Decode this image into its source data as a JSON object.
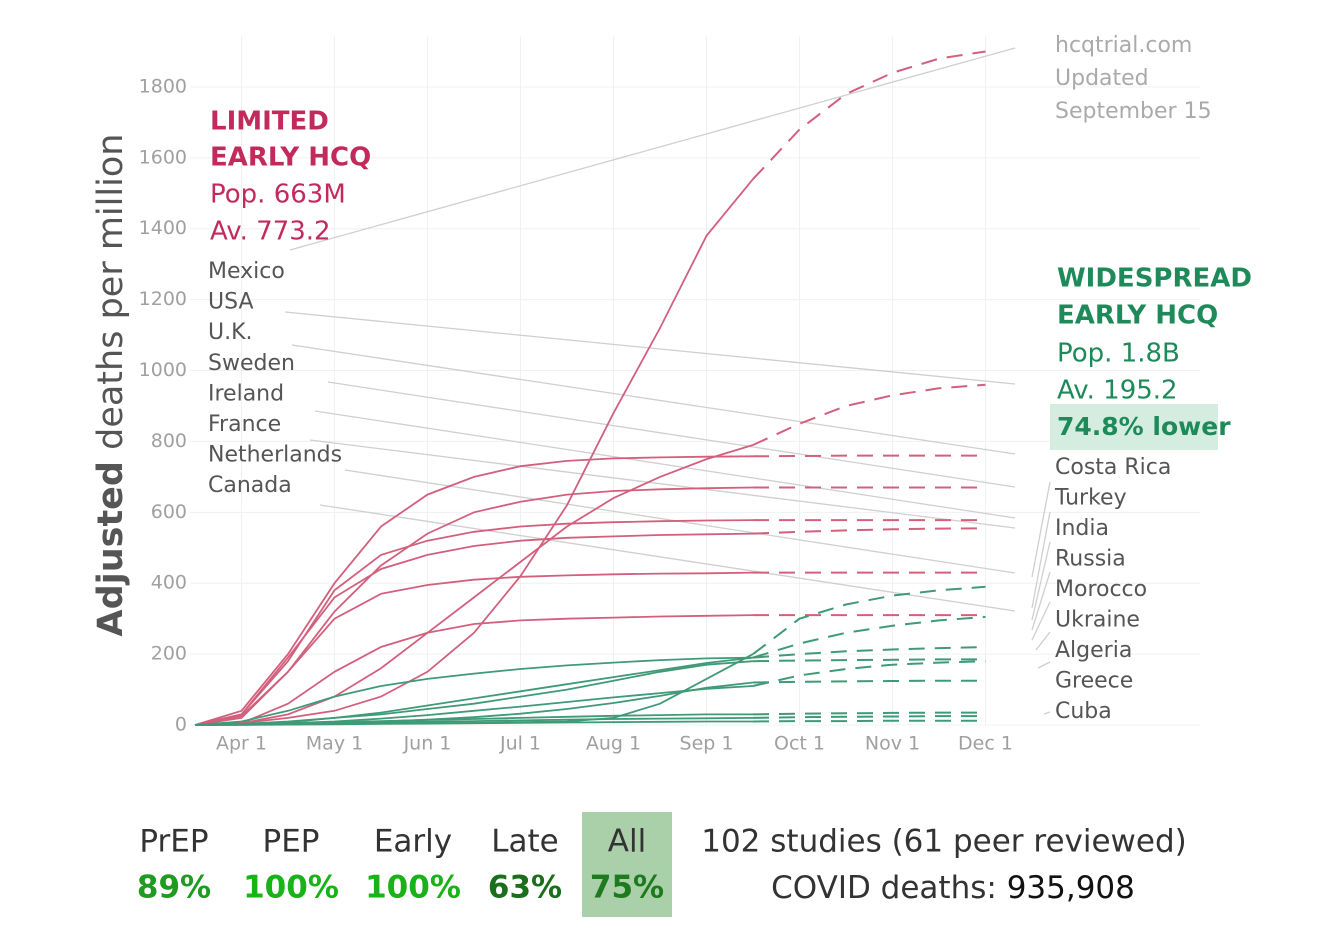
{
  "chart_data": {
    "type": "line",
    "ylabel_bold": "Adjusted",
    "ylabel": "deaths per million",
    "categories": [
      null,
      "Apr 1",
      null,
      "May 1",
      null,
      "Jun 1",
      null,
      "Jul 1",
      null,
      "Aug 1",
      null,
      "Sep 1",
      null,
      "Oct 1",
      null,
      "Nov 1",
      null,
      "Dec 1"
    ],
    "ylim": [
      0,
      1900
    ],
    "yticks": [
      0,
      200,
      400,
      600,
      800,
      1000,
      1200,
      1400,
      1600,
      1800
    ],
    "grid": true,
    "series": [
      {
        "color": "#d2607d",
        "values": [
          0,
          5,
          20,
          40,
          80,
          150,
          260,
          420,
          620,
          880,
          1120,
          1380,
          1540,
          null,
          null,
          null,
          null,
          null
        ],
        "projected": [
          null,
          null,
          null,
          null,
          null,
          null,
          null,
          null,
          null,
          null,
          null,
          null,
          1540,
          1680,
          1780,
          1840,
          1880,
          1900
        ]
      },
      {
        "color": "#d2607d",
        "values": [
          0,
          40,
          200,
          400,
          560,
          650,
          700,
          730,
          745,
          752,
          755,
          757,
          758,
          null,
          null,
          null,
          null,
          null
        ],
        "projected": [
          null,
          null,
          null,
          null,
          null,
          null,
          null,
          null,
          null,
          null,
          null,
          null,
          758,
          759,
          760,
          760,
          760,
          760
        ]
      },
      {
        "color": "#d2607d",
        "values": [
          0,
          25,
          150,
          320,
          450,
          540,
          600,
          630,
          650,
          660,
          665,
          668,
          670,
          null,
          null,
          null,
          null,
          null
        ],
        "projected": [
          null,
          null,
          null,
          null,
          null,
          null,
          null,
          null,
          null,
          null,
          null,
          null,
          670,
          670,
          670,
          670,
          670,
          670
        ]
      },
      {
        "color": "#d2607d",
        "values": [
          0,
          30,
          180,
          380,
          480,
          520,
          545,
          560,
          568,
          572,
          575,
          577,
          578,
          null,
          null,
          null,
          null,
          null
        ],
        "projected": [
          null,
          null,
          null,
          null,
          null,
          null,
          null,
          null,
          null,
          null,
          null,
          null,
          578,
          578,
          578,
          578,
          578,
          578
        ]
      },
      {
        "color": "#d2607d",
        "values": [
          0,
          30,
          190,
          360,
          440,
          480,
          505,
          520,
          528,
          532,
          536,
          538,
          540,
          null,
          null,
          null,
          null,
          null
        ],
        "projected": [
          null,
          null,
          null,
          null,
          null,
          null,
          null,
          null,
          null,
          null,
          null,
          null,
          540,
          545,
          549,
          552,
          554,
          555
        ]
      },
      {
        "color": "#d2607d",
        "values": [
          0,
          20,
          150,
          300,
          370,
          395,
          410,
          418,
          422,
          425,
          427,
          428,
          430,
          null,
          null,
          null,
          null,
          null
        ],
        "projected": [
          null,
          null,
          null,
          null,
          null,
          null,
          null,
          null,
          null,
          null,
          null,
          null,
          430,
          430,
          430,
          430,
          430,
          430
        ]
      },
      {
        "color": "#d2607d",
        "values": [
          0,
          5,
          60,
          150,
          220,
          260,
          285,
          295,
          300,
          303,
          306,
          308,
          310,
          null,
          null,
          null,
          null,
          null
        ],
        "projected": [
          null,
          null,
          null,
          null,
          null,
          null,
          null,
          null,
          null,
          null,
          null,
          null,
          310,
          310,
          310,
          310,
          310,
          310
        ]
      },
      {
        "color": "#d2607d",
        "values": [
          0,
          5,
          30,
          80,
          160,
          260,
          360,
          460,
          560,
          640,
          700,
          750,
          790,
          null,
          null,
          null,
          null,
          null
        ],
        "projected": [
          null,
          null,
          null,
          null,
          null,
          null,
          null,
          null,
          null,
          null,
          null,
          null,
          790,
          850,
          900,
          930,
          950,
          960
        ]
      },
      {
        "color": "#3f9a78",
        "values": [
          0,
          1,
          2,
          3,
          4,
          5,
          6,
          8,
          10,
          20,
          60,
          130,
          200,
          null,
          null,
          null,
          null,
          null
        ],
        "projected": [
          null,
          null,
          null,
          null,
          null,
          null,
          null,
          null,
          null,
          null,
          null,
          null,
          200,
          300,
          340,
          365,
          380,
          390
        ]
      },
      {
        "color": "#3f9a78",
        "values": [
          0,
          10,
          40,
          80,
          110,
          130,
          145,
          158,
          168,
          176,
          183,
          188,
          190,
          null,
          null,
          null,
          null,
          null
        ],
        "projected": [
          null,
          null,
          null,
          null,
          null,
          null,
          null,
          null,
          null,
          null,
          null,
          null,
          190,
          200,
          208,
          213,
          217,
          220
        ]
      },
      {
        "color": "#3f9a78",
        "values": [
          0,
          2,
          8,
          20,
          35,
          55,
          75,
          95,
          115,
          135,
          155,
          175,
          190,
          null,
          null,
          null,
          null,
          null
        ],
        "projected": [
          null,
          null,
          null,
          null,
          null,
          null,
          null,
          null,
          null,
          null,
          null,
          null,
          190,
          230,
          260,
          280,
          295,
          305
        ]
      },
      {
        "color": "#3f9a78",
        "values": [
          0,
          3,
          10,
          20,
          30,
          45,
          60,
          80,
          100,
          125,
          150,
          170,
          180,
          null,
          null,
          null,
          null,
          null
        ],
        "projected": [
          null,
          null,
          null,
          null,
          null,
          null,
          null,
          null,
          null,
          null,
          null,
          null,
          180,
          182,
          183,
          184,
          185,
          185
        ]
      },
      {
        "color": "#3f9a78",
        "values": [
          0,
          1,
          3,
          6,
          10,
          15,
          22,
          32,
          45,
          62,
          82,
          105,
          120,
          null,
          null,
          null,
          null,
          null
        ],
        "projected": [
          null,
          null,
          null,
          null,
          null,
          null,
          null,
          null,
          null,
          null,
          null,
          null,
          120,
          122,
          123,
          124,
          125,
          125
        ]
      },
      {
        "color": "#3f9a78",
        "values": [
          0,
          2,
          5,
          10,
          18,
          28,
          40,
          52,
          65,
          78,
          90,
          102,
          110,
          null,
          null,
          null,
          null,
          null
        ],
        "projected": [
          null,
          null,
          null,
          null,
          null,
          null,
          null,
          null,
          null,
          null,
          null,
          null,
          110,
          140,
          158,
          170,
          176,
          180
        ]
      },
      {
        "color": "#3f9a78",
        "values": [
          0,
          2,
          5,
          8,
          11,
          14,
          17,
          20,
          23,
          26,
          28,
          30,
          30,
          null,
          null,
          null,
          null,
          null
        ],
        "projected": [
          null,
          null,
          null,
          null,
          null,
          null,
          null,
          null,
          null,
          null,
          null,
          null,
          30,
          32,
          33,
          34,
          35,
          35
        ]
      },
      {
        "color": "#3f9a78",
        "values": [
          0,
          1,
          3,
          5,
          7,
          9,
          11,
          13,
          15,
          17,
          18,
          19,
          20,
          null,
          null,
          null,
          null,
          null
        ],
        "projected": [
          null,
          null,
          null,
          null,
          null,
          null,
          null,
          null,
          null,
          null,
          null,
          null,
          20,
          22,
          23,
          24,
          25,
          25
        ]
      },
      {
        "color": "#3f9a78",
        "values": [
          0,
          0,
          1,
          2,
          3,
          4,
          5,
          6,
          7,
          8,
          9,
          10,
          10,
          null,
          null,
          null,
          null,
          null
        ],
        "projected": [
          null,
          null,
          null,
          null,
          null,
          null,
          null,
          null,
          null,
          null,
          null,
          null,
          10,
          11,
          11,
          12,
          12,
          12
        ]
      }
    ],
    "limited": {
      "title": [
        "LIMITED",
        "EARLY HCQ"
      ],
      "pop": "Pop. 663M",
      "avg": "Av. 773.2",
      "color": "#c32a5c",
      "countries": [
        "Mexico",
        "USA",
        "U.K.",
        "Sweden",
        "Ireland",
        "France",
        "Netherlands",
        "Canada"
      ]
    },
    "widespread": {
      "title": [
        "WIDESPREAD",
        "EARLY HCQ"
      ],
      "pop": "Pop. 1.8B",
      "avg": "Av. 195.2",
      "lower": "74.8% lower",
      "color": "#1e8a5a",
      "countries": [
        "Costa Rica",
        "Turkey",
        "India",
        "Russia",
        "Morocco",
        "Ukraine",
        "Algeria",
        "Greece",
        "Cuba"
      ]
    },
    "source": [
      "hcqtrial.com",
      "Updated",
      "September 15"
    ]
  },
  "summary": {
    "stats": [
      {
        "label": "PrEP",
        "value": "89%",
        "color": "#1f9b1f"
      },
      {
        "label": "PEP",
        "value": "100%",
        "color": "#17b317"
      },
      {
        "label": "Early",
        "value": "100%",
        "color": "#17b317"
      },
      {
        "label": "Late",
        "value": "63%",
        "color": "#1a6f1a"
      },
      {
        "label": "All",
        "value": "75%",
        "color": "#1f7a1f",
        "selected": true
      }
    ],
    "studies": "102 studies (61 peer reviewed)",
    "deaths_label": "COVID deaths:",
    "deaths": "935,908"
  }
}
